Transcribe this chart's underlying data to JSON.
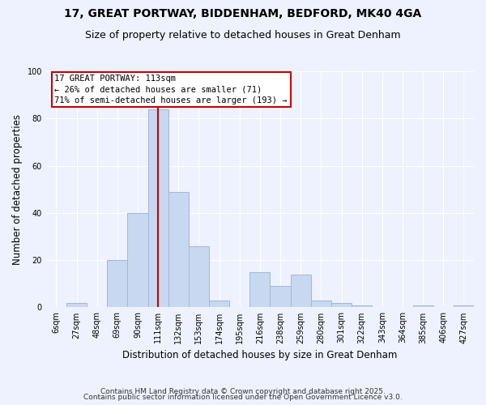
{
  "title": "17, GREAT PORTWAY, BIDDENHAM, BEDFORD, MK40 4GA",
  "subtitle": "Size of property relative to detached houses in Great Denham",
  "xlabel": "Distribution of detached houses by size in Great Denham",
  "ylabel": "Number of detached properties",
  "bar_color": "#c8d8f0",
  "bar_edge_color": "#a0b8d8",
  "bin_labels": [
    "6sqm",
    "27sqm",
    "48sqm",
    "69sqm",
    "90sqm",
    "111sqm",
    "132sqm",
    "153sqm",
    "174sqm",
    "195sqm",
    "216sqm",
    "238sqm",
    "259sqm",
    "280sqm",
    "301sqm",
    "322sqm",
    "343sqm",
    "364sqm",
    "385sqm",
    "406sqm",
    "427sqm"
  ],
  "bar_values": [
    0,
    2,
    0,
    20,
    40,
    84,
    49,
    26,
    3,
    0,
    15,
    9,
    14,
    3,
    2,
    1,
    0,
    0,
    1,
    0,
    1
  ],
  "ylim": [
    0,
    100
  ],
  "yticks": [
    0,
    20,
    40,
    60,
    80,
    100
  ],
  "vline_x_index": 5,
  "vline_color": "#cc0000",
  "annotation_title": "17 GREAT PORTWAY: 113sqm",
  "annotation_line2": "← 26% of detached houses are smaller (71)",
  "annotation_line3": "71% of semi-detached houses are larger (193) →",
  "footer1": "Contains HM Land Registry data © Crown copyright and database right 2025.",
  "footer2": "Contains public sector information licensed under the Open Government Licence v3.0.",
  "background_color": "#eef2ff",
  "grid_color": "#ffffff",
  "title_fontsize": 10,
  "subtitle_fontsize": 9,
  "axis_label_fontsize": 8.5,
  "tick_fontsize": 7,
  "annotation_fontsize": 7.5,
  "footer_fontsize": 6.5
}
